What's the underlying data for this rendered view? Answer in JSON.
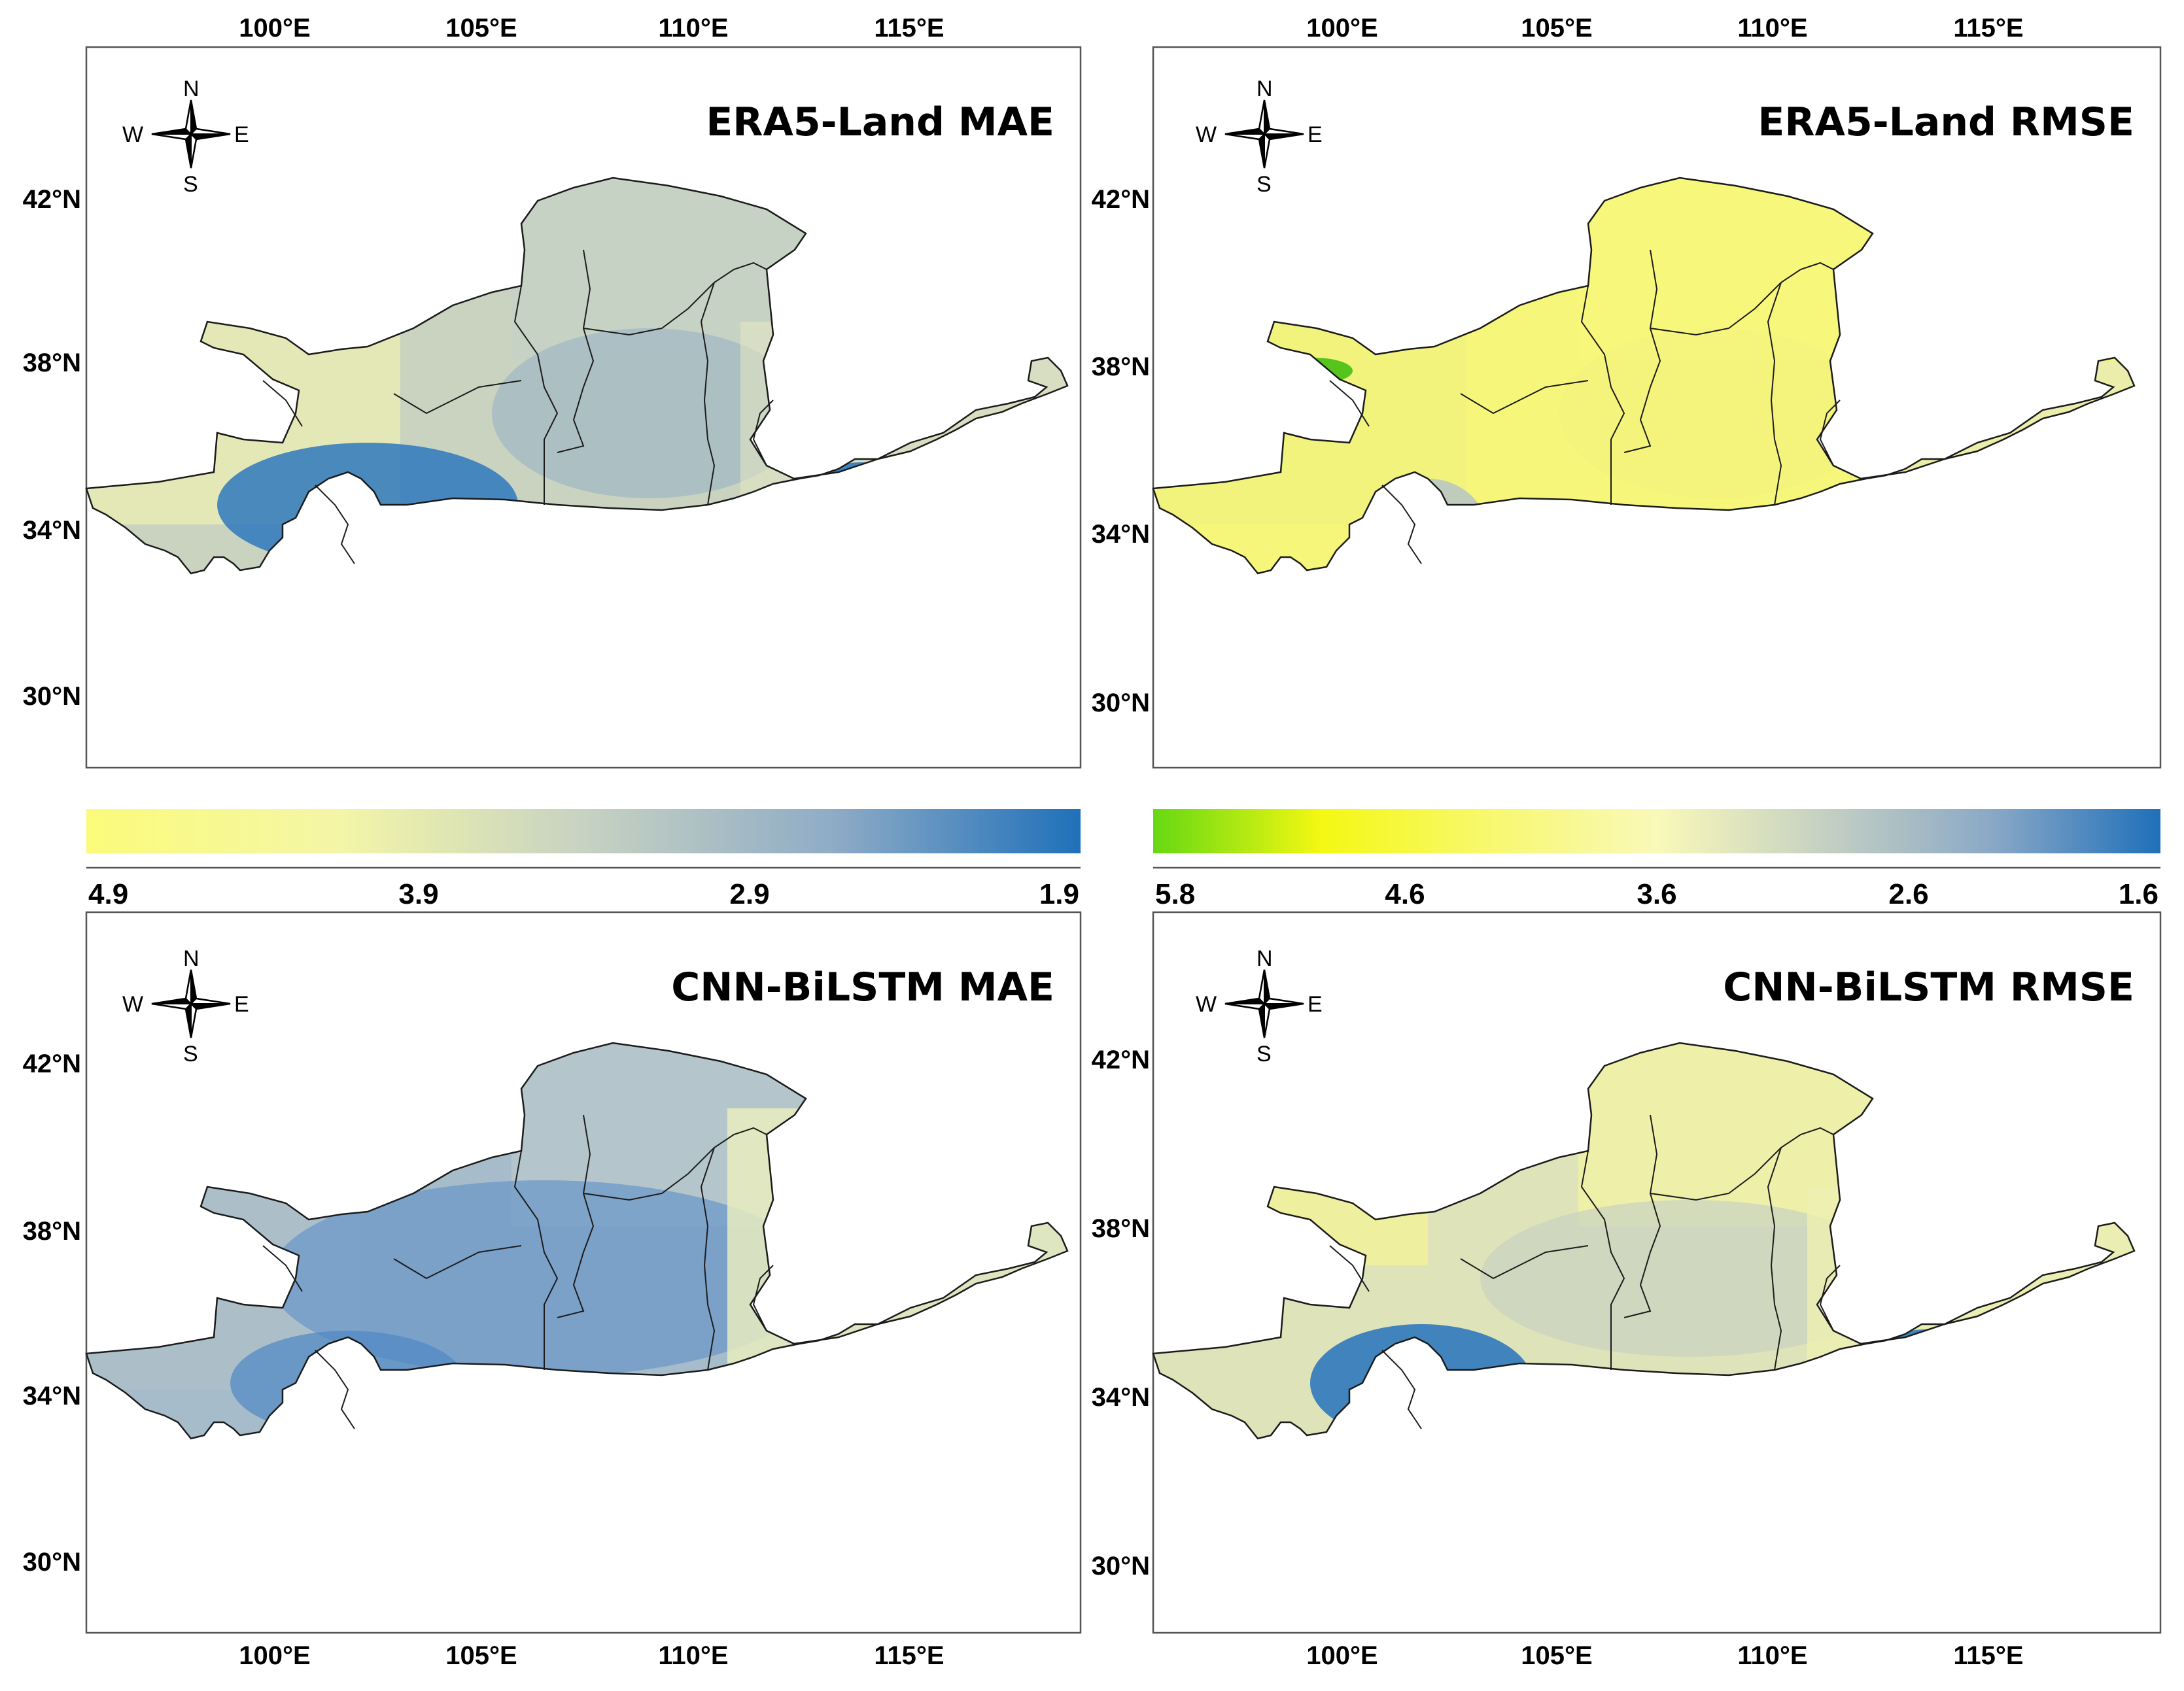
{
  "figure": {
    "description_panels": 4
  },
  "panels": [
    {
      "id": "era5-mae",
      "title": "ERA5-Land MAE",
      "top_lon_labels": [
        "100°E",
        "105°E",
        "110°E",
        "115°E"
      ],
      "bottom_lon_labels": [],
      "lat_labels": [
        "42°N",
        "38°N",
        "34°N",
        "30°N"
      ],
      "compass": {
        "n": "N",
        "s": "S",
        "e": "E",
        "w": "W"
      },
      "colors": {
        "base": "#c9d3c0",
        "west": "#ecefb3",
        "north": "#c5d2c4",
        "south": "#2e78bd",
        "center": "#9fb6c4",
        "east": "#e2e6c3"
      }
    },
    {
      "id": "era5-rmse",
      "title": "ERA5-Land RMSE",
      "top_lon_labels": [
        "100°E",
        "105°E",
        "110°E",
        "115°E"
      ],
      "bottom_lon_labels": [],
      "lat_labels": [
        "42°N",
        "38°N",
        "34°N",
        "30°N"
      ],
      "compass": {
        "n": "N",
        "s": "S",
        "e": "E",
        "w": "W"
      },
      "colors": {
        "base": "#f6f67a",
        "west": "#f1f37e",
        "north": "#f7f77c",
        "south": "#b9c6c2",
        "center": "#f3f37e",
        "east": "#e9ecb7"
      }
    },
    {
      "id": "cnn-mae",
      "title": "CNN-BiLSTM MAE",
      "top_lon_labels": [],
      "bottom_lon_labels": [
        "100°E",
        "105°E",
        "110°E",
        "115°E"
      ],
      "lat_labels": [
        "42°N",
        "38°N",
        "34°N",
        "30°N"
      ],
      "compass": {
        "n": "N",
        "s": "S",
        "e": "E",
        "w": "W"
      },
      "colors": {
        "base": "#a7bcca",
        "west": "#aebfc8",
        "north": "#b8c8cb",
        "south": "#4f87c4",
        "center": "#6d98c8",
        "east": "#e8ecc0"
      }
    },
    {
      "id": "cnn-rmse",
      "title": "CNN-BiLSTM RMSE",
      "top_lon_labels": [],
      "bottom_lon_labels": [
        "100°E",
        "105°E",
        "110°E",
        "115°E"
      ],
      "lat_labels": [
        "42°N",
        "38°N",
        "34°N",
        "30°N"
      ],
      "compass": {
        "n": "N",
        "s": "S",
        "e": "E",
        "w": "W"
      },
      "colors": {
        "base": "#dfe3b9",
        "west": "#f2f29a",
        "north": "#f1f2a6",
        "south": "#2f78be",
        "center": "#c8d2c2",
        "east": "#eef0b2"
      }
    }
  ],
  "colorbars": [
    {
      "id": "mae-colorbar",
      "labels": [
        "4.9",
        "3.9",
        "2.9",
        "1.9"
      ],
      "stops": [
        "#fbfb7a",
        "#f4f6a6",
        "#c7d2c2",
        "#8facc6",
        "#1f70ba"
      ]
    },
    {
      "id": "rmse-colorbar",
      "labels": [
        "5.8",
        "4.6",
        "3.6",
        "2.6",
        "1.6"
      ],
      "stops": [
        "#66d813",
        "#f4f812",
        "#f8f86f",
        "#f9f9b9",
        "#c5d0c3",
        "#8aa8c6",
        "#1f70ba"
      ]
    }
  ]
}
